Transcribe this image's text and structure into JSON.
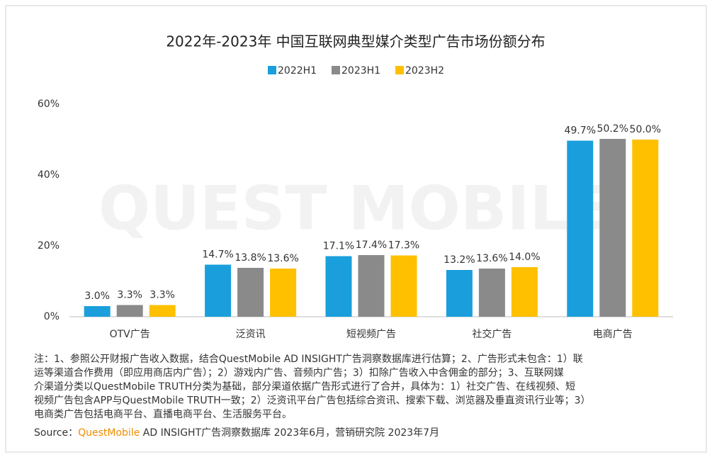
{
  "chart_data": {
    "type": "bar",
    "title": "2022年-2023年 中国互联网典型媒介类型广告市场份额分布",
    "watermark": "QUEST MOBILE",
    "categories": [
      "OTV广告",
      "泛资讯",
      "短视频广告",
      "社交广告",
      "电商广告"
    ],
    "series": [
      {
        "name": "2022H1",
        "color": "#1a9fdc",
        "values": [
          3.0,
          14.7,
          17.1,
          13.2,
          49.7
        ],
        "value_labels": [
          "3.0%",
          "14.7%",
          "17.1%",
          "13.2%",
          "49.7%"
        ]
      },
      {
        "name": "2023H1",
        "color": "#8a8a8a",
        "values": [
          3.3,
          13.8,
          17.4,
          13.6,
          50.2
        ],
        "value_labels": [
          "3.3%",
          "13.8%",
          "17.4%",
          "13.6%",
          "50.2%"
        ]
      },
      {
        "name": "2023H2",
        "color": "#ffc000",
        "values": [
          3.3,
          13.6,
          17.3,
          14.0,
          50.0
        ],
        "value_labels": [
          "3.3%",
          "13.6%",
          "17.3%",
          "14.0%",
          "50.0%"
        ]
      }
    ],
    "ylim": [
      0,
      60
    ],
    "yticks": [
      {
        "value": 0,
        "label": "0%"
      },
      {
        "value": 20,
        "label": "20%"
      },
      {
        "value": 40,
        "label": "40%"
      },
      {
        "value": 60,
        "label": "60%"
      }
    ],
    "grid": false,
    "legend": "top",
    "notes": [
      "注：1、参照公开财报广告收入数据，结合QuestMobile AD INSIGHT广告洞察数据库进行估算；2、广告形式未包含：1）联",
      "运等渠道合作费用（即应用商店内广告）；2）游戏内广告、音频内广告；3）扣除广告收入中含佣金的部分；3、互联网媒",
      "介渠道分类以QuestMobile TRUTH分类为基础，部分渠道依据广告形式进行了合并，具体为：1）社交广告、在线视频、短",
      "视频广告包含APP与QuestMobile TRUTH一致；2）泛资讯平台广告包括综合资讯、搜索下载、浏览器及垂直资讯行业等；3）",
      "电商类广告包括电商平台、直播电商平台、生活服务平台。"
    ],
    "source": {
      "label": "Source：",
      "brand": "QuestMobile",
      "text": " AD INSIGHT广告洞察数据库 2023年6月，营销研究院 2023年7月"
    }
  }
}
